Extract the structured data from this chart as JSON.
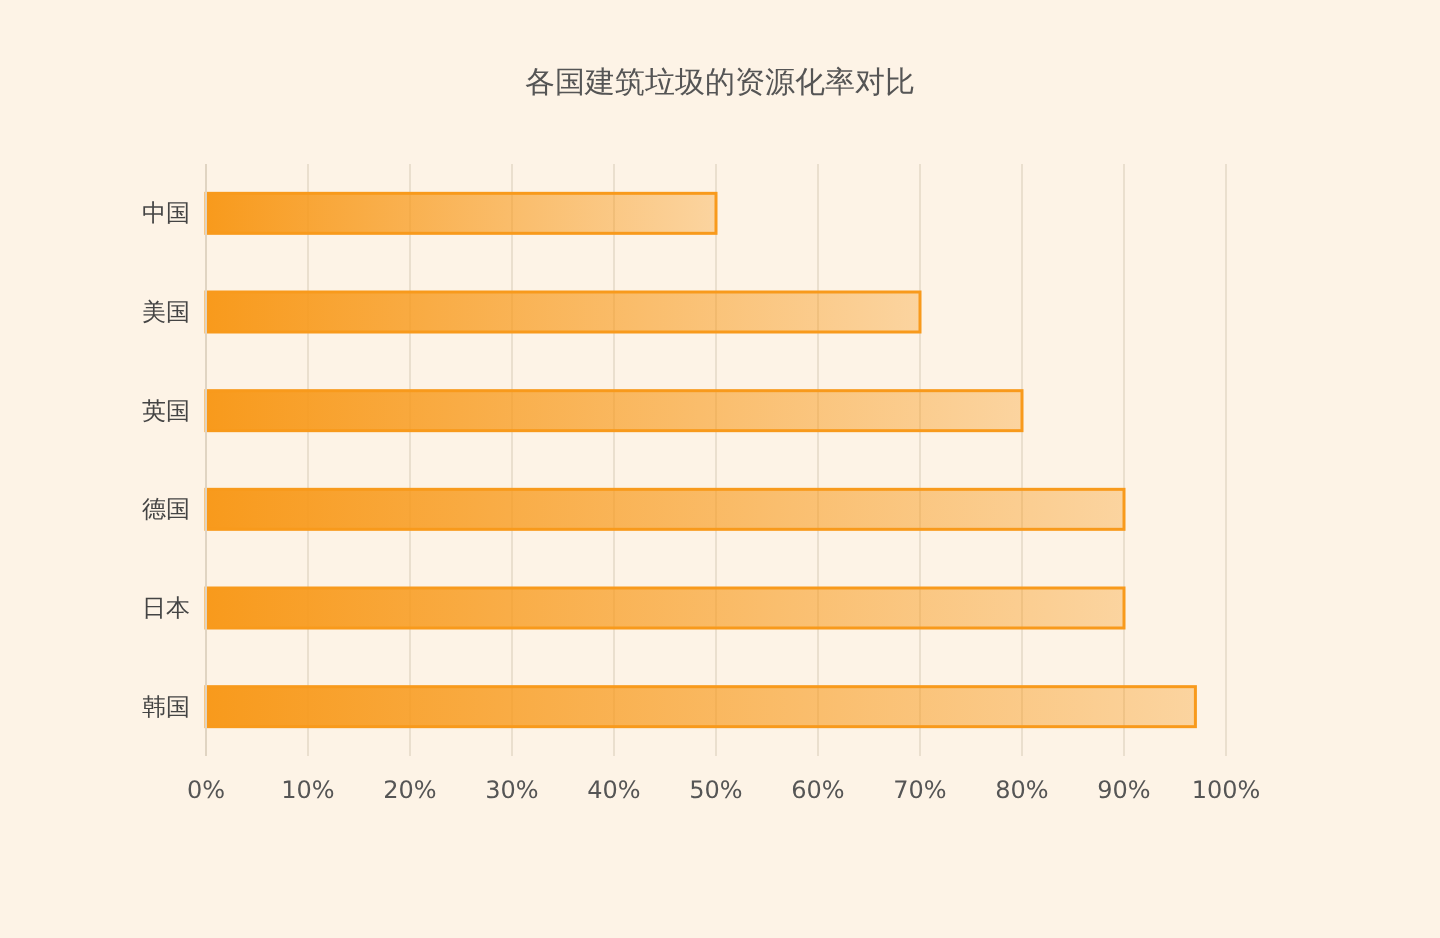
{
  "chart_data": {
    "type": "bar",
    "orientation": "horizontal",
    "title": "各国建筑垃圾的资源化率对比",
    "categories": [
      "中国",
      "美国",
      "英国",
      "德国",
      "日本",
      "韩国"
    ],
    "values": [
      50,
      70,
      80,
      90,
      90,
      97
    ],
    "color": "#f89a1c",
    "xlim": [
      0,
      100
    ],
    "xticks": [
      {
        "value": 0,
        "label": "0%"
      },
      {
        "value": 10,
        "label": "10%"
      },
      {
        "value": 20,
        "label": "20%"
      },
      {
        "value": 30,
        "label": "30%"
      },
      {
        "value": 40,
        "label": "40%"
      },
      {
        "value": 50,
        "label": "50%"
      },
      {
        "value": 60,
        "label": "60%"
      },
      {
        "value": 70,
        "label": "70%"
      },
      {
        "value": 80,
        "label": "80%"
      },
      {
        "value": 90,
        "label": "90%"
      },
      {
        "value": 100,
        "label": "100%"
      }
    ],
    "grid": "x"
  }
}
